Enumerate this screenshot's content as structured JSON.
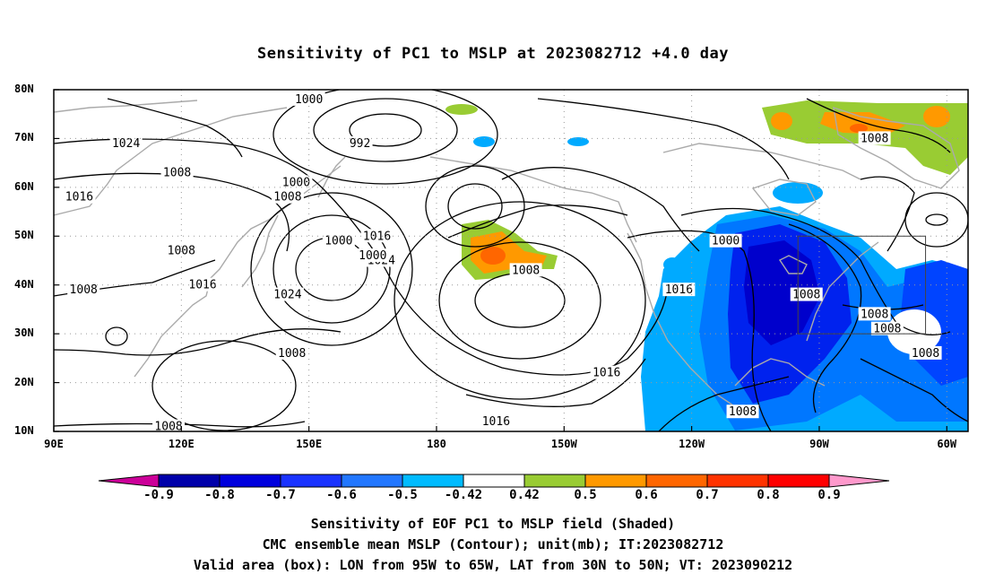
{
  "title": "Sensitivity of PC1 to MSLP at 2023082712 +4.0 day",
  "map": {
    "lat_ticks": [
      "80N",
      "70N",
      "60N",
      "50N",
      "40N",
      "30N",
      "20N",
      "10N"
    ],
    "lon_ticks": [
      "90E",
      "120E",
      "150E",
      "180",
      "150W",
      "120W",
      "90W",
      "60W"
    ],
    "lon_range": [
      90,
      305
    ],
    "lat_range": [
      10,
      80
    ],
    "valid_box": {
      "lon": [
        265,
        295
      ],
      "lat": [
        30,
        50
      ]
    },
    "contour_labels": [
      "1000",
      "1024",
      "992",
      "1008",
      "1000",
      "1008",
      "1016",
      "1008",
      "1008",
      "1000",
      "1016",
      "1024",
      "1000",
      "1000",
      "1008",
      "1016",
      "1024",
      "1008",
      "1016",
      "1008",
      "1016",
      "1008",
      "1008",
      "1008",
      "1008",
      "1016",
      "1008",
      "1008"
    ],
    "contour_label_lonlat": [
      [
        150,
        78
      ],
      [
        107,
        69
      ],
      [
        162,
        69
      ],
      [
        119,
        63
      ],
      [
        147,
        61
      ],
      [
        145,
        58
      ],
      [
        96,
        58
      ],
      [
        283,
        70
      ],
      [
        120,
        47
      ],
      [
        157,
        49
      ],
      [
        166,
        50
      ],
      [
        167,
        45
      ],
      [
        248,
        49
      ],
      [
        165,
        46
      ],
      [
        97,
        39
      ],
      [
        125,
        40
      ],
      [
        145,
        38
      ],
      [
        201,
        43
      ],
      [
        237,
        39
      ],
      [
        267,
        38
      ],
      [
        220,
        22
      ],
      [
        283,
        34
      ],
      [
        286,
        31
      ],
      [
        295,
        26
      ],
      [
        146,
        26
      ],
      [
        194,
        12
      ],
      [
        117,
        11
      ],
      [
        252,
        14
      ]
    ],
    "colors": {
      "positive": [
        "#99cc33",
        "#ff9900",
        "#ff6600",
        "#ff3300",
        "#ff0000",
        "#ff99cc"
      ],
      "negative": [
        "#cc0099",
        "#0000cc",
        "#0022ee",
        "#0044ff",
        "#0077ff",
        "#00aaff"
      ],
      "contour": "#000000",
      "coast": "#aaaaaa"
    }
  },
  "colorbar": {
    "labels": [
      "-0.9",
      "-0.8",
      "-0.7",
      "-0.6",
      "-0.5",
      "-0.42",
      "0.42",
      "0.5",
      "0.6",
      "0.7",
      "0.8",
      "0.9"
    ],
    "colors": [
      "#0000aa",
      "#0000dd",
      "#1a33ff",
      "#2277ff",
      "#00bbff",
      "#ffffff",
      "#99cc33",
      "#ff9900",
      "#ff6600",
      "#ff3300",
      "#ff0000"
    ],
    "low_color": "#cc0099",
    "high_color": "#ff99cc"
  },
  "caption": {
    "line1": "Sensitivity of EOF PC1 to MSLP field (Shaded)",
    "line2": "CMC ensemble mean MSLP (Contour); unit(mb); IT:2023082712",
    "line3": "Valid area (box): LON from 95W to 65W, LAT from 30N to 50N; VT: 2023090212"
  }
}
